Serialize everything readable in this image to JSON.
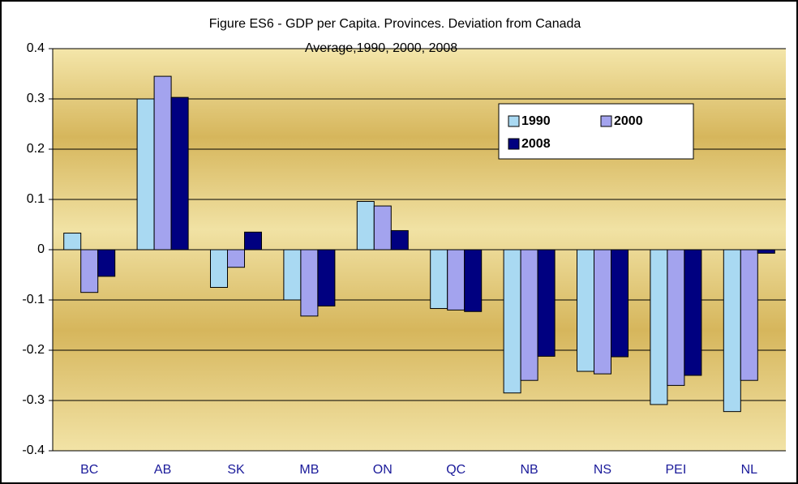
{
  "chart_data": {
    "type": "bar",
    "title": [
      "Figure ES6 - GDP  per Capita. Provinces. Deviation from Canada",
      "Average,1990, 2000, 2008"
    ],
    "categories": [
      "BC",
      "AB",
      "SK",
      "MB",
      "ON",
      "QC",
      "NB",
      "NS",
      "PEI",
      "NL"
    ],
    "series": [
      {
        "name": "1990",
        "color": "#a9d9f2",
        "values": [
          0.033,
          0.3,
          -0.075,
          -0.1,
          0.096,
          -0.117,
          -0.285,
          -0.242,
          -0.308,
          -0.322
        ]
      },
      {
        "name": "2000",
        "color": "#a3a3ee",
        "values": [
          -0.085,
          0.345,
          -0.035,
          -0.132,
          0.087,
          -0.12,
          -0.26,
          -0.247,
          -0.27,
          -0.26
        ]
      },
      {
        "name": "2008",
        "color": "#000080",
        "values": [
          -0.053,
          0.303,
          0.035,
          -0.112,
          0.038,
          -0.123,
          -0.212,
          -0.213,
          -0.25,
          -0.007
        ]
      }
    ],
    "ylim": [
      -0.4,
      0.4
    ],
    "yticks": [
      -0.4,
      -0.3,
      -0.2,
      -0.1,
      0,
      0.1,
      0.2,
      0.3,
      0.4
    ],
    "grid": true
  }
}
